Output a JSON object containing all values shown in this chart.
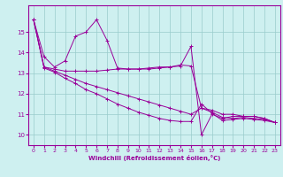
{
  "xlabel": "Windchill (Refroidissement éolien,°C)",
  "bg_color": "#cef0f0",
  "line_color": "#990099",
  "grid_color": "#99cccc",
  "xlim": [
    -0.5,
    23.5
  ],
  "ylim": [
    9.5,
    16.3
  ],
  "yticks": [
    10,
    11,
    12,
    13,
    14,
    15
  ],
  "xticks": [
    0,
    1,
    2,
    3,
    4,
    5,
    6,
    7,
    8,
    9,
    10,
    11,
    12,
    13,
    14,
    15,
    16,
    17,
    18,
    19,
    20,
    21,
    22,
    23
  ],
  "series": [
    {
      "x": [
        0,
        1,
        2,
        3,
        4,
        5,
        6,
        7,
        8,
        9,
        10,
        11,
        12,
        13,
        14,
        15,
        16,
        17,
        18,
        19,
        20,
        21,
        22,
        23
      ],
      "y": [
        15.6,
        13.8,
        13.3,
        13.6,
        14.8,
        15.0,
        15.6,
        14.6,
        13.25,
        13.2,
        13.2,
        13.2,
        13.25,
        13.3,
        13.4,
        13.35,
        11.3,
        11.2,
        11.0,
        11.0,
        10.9,
        10.9,
        10.8,
        10.6
      ]
    },
    {
      "x": [
        0,
        1,
        2,
        3,
        4,
        5,
        6,
        7,
        8,
        9,
        10,
        11,
        12,
        13,
        14,
        15,
        16,
        17,
        18,
        19,
        20,
        21,
        22,
        23
      ],
      "y": [
        15.6,
        13.3,
        13.2,
        13.1,
        13.1,
        13.1,
        13.1,
        13.15,
        13.2,
        13.2,
        13.2,
        13.25,
        13.3,
        13.3,
        13.35,
        14.3,
        10.0,
        11.0,
        10.8,
        10.9,
        10.9,
        10.9,
        10.8,
        10.6
      ]
    },
    {
      "x": [
        0,
        1,
        2,
        3,
        4,
        5,
        6,
        7,
        8,
        9,
        10,
        11,
        12,
        13,
        14,
        15,
        16,
        17,
        18,
        19,
        20,
        21,
        22,
        23
      ],
      "y": [
        15.6,
        13.3,
        13.1,
        12.9,
        12.7,
        12.5,
        12.35,
        12.2,
        12.05,
        11.9,
        11.75,
        11.6,
        11.45,
        11.3,
        11.15,
        11.0,
        11.3,
        11.1,
        10.85,
        10.8,
        10.85,
        10.8,
        10.75,
        10.6
      ]
    },
    {
      "x": [
        0,
        1,
        2,
        3,
        4,
        5,
        6,
        7,
        8,
        9,
        10,
        11,
        12,
        13,
        14,
        15,
        16,
        17,
        18,
        19,
        20,
        21,
        22,
        23
      ],
      "y": [
        15.6,
        13.25,
        13.05,
        12.75,
        12.5,
        12.2,
        12.0,
        11.75,
        11.5,
        11.3,
        11.1,
        10.95,
        10.8,
        10.7,
        10.65,
        10.65,
        11.5,
        11.05,
        10.7,
        10.75,
        10.8,
        10.75,
        10.7,
        10.6
      ]
    }
  ]
}
